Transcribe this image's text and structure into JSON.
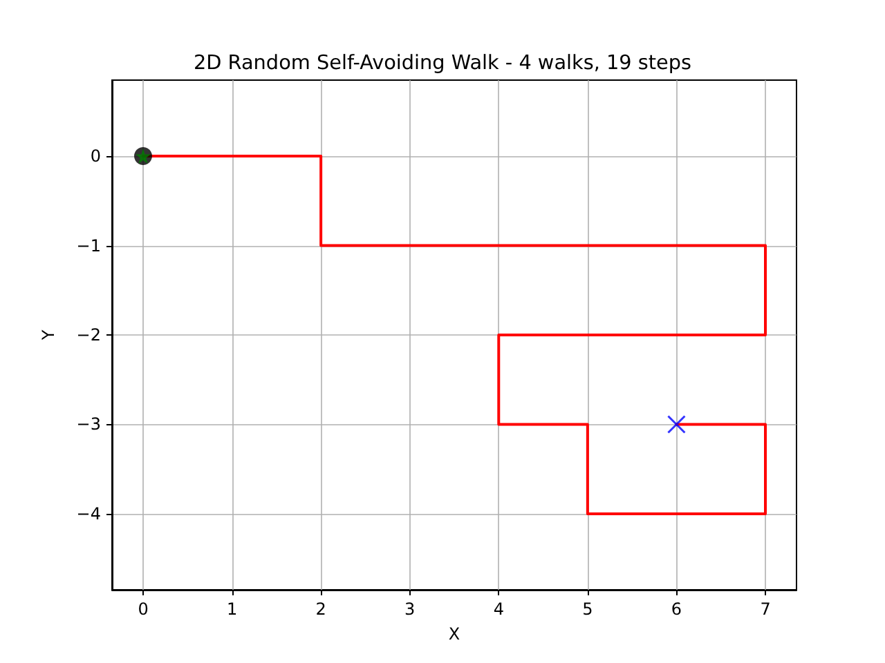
{
  "chart_data": {
    "type": "line",
    "title": "2D Random Self-Avoiding Walk - 4 walks, 19 steps",
    "xlabel": "X",
    "ylabel": "Y",
    "xlim": [
      -0.35,
      7.35
    ],
    "ylim": [
      -4.85,
      0.85
    ],
    "xticks": [
      0,
      1,
      2,
      3,
      4,
      5,
      6,
      7
    ],
    "yticks": [
      -4,
      -3,
      -2,
      -1,
      0
    ],
    "grid": true,
    "series": [
      {
        "color": "#ff0000",
        "marker": "none",
        "line_style": "solid",
        "x": [
          0,
          2,
          2,
          7,
          7,
          4,
          4,
          5,
          5,
          7,
          7,
          6
        ],
        "values": [
          0,
          0,
          -1,
          -1,
          -2,
          -2,
          -3,
          -3,
          -4,
          -4,
          -3,
          -3
        ]
      },
      {
        "type": "scatter",
        "color": "#000000",
        "marker": "circle",
        "x": [
          0
        ],
        "values": [
          0
        ]
      },
      {
        "type": "scatter",
        "color": "#008000",
        "marker": "star",
        "x": [
          0
        ],
        "values": [
          0
        ]
      },
      {
        "type": "scatter",
        "color": "#0000ff",
        "marker": "cross",
        "x": [
          6
        ],
        "values": [
          -3
        ]
      }
    ]
  }
}
